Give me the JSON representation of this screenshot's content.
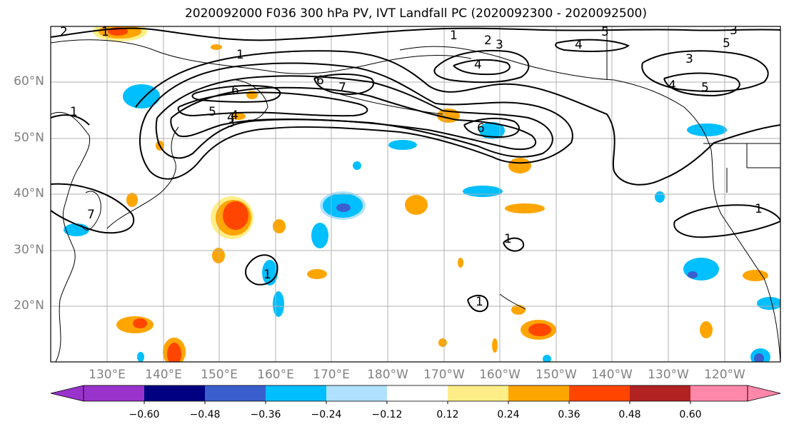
{
  "title": "2020092000 F036 300 hPa PV, IVT Landfall PC (2020092300 - 2020092500)",
  "map": {
    "lat_labels": [
      "60°N",
      "50°N",
      "40°N",
      "30°N",
      "20°N"
    ],
    "lat_values": [
      60,
      50,
      40,
      30,
      20
    ],
    "lon_labels": [
      "130°E",
      "140°E",
      "150°E",
      "160°E",
      "170°E",
      "180°W",
      "170°W",
      "160°W",
      "150°W",
      "140°W",
      "130°W",
      "120°W"
    ],
    "lon_values": [
      130,
      140,
      150,
      160,
      170,
      180,
      190,
      200,
      210,
      220,
      230,
      240
    ],
    "extent": {
      "lon_min": 120,
      "lon_max": 250,
      "lat_min": 10,
      "lat_max": 70
    },
    "pv_contour_labels": [
      "1",
      "2",
      "3",
      "4",
      "5",
      "6",
      "7",
      "1",
      "2",
      "3",
      "4",
      "5",
      "1",
      "4",
      "3",
      "6",
      "7",
      "1",
      "1",
      "1",
      "1",
      "5",
      "4",
      "3",
      "6",
      "4",
      "5",
      "1"
    ],
    "colors": {
      "land_outline": "#000000",
      "grid": "#b0b0b0",
      "contour": "#000000"
    }
  },
  "colorbar": {
    "ticks": [
      "−0.60",
      "−0.48",
      "−0.36",
      "−0.24",
      "−0.12",
      "0.12",
      "0.24",
      "0.36",
      "0.48",
      "0.60"
    ],
    "colors": [
      "#9933cc",
      "#000080",
      "#3a5fcd",
      "#00bfff",
      "#b0e2ff",
      "#ffffff",
      "#ffee88",
      "#ffa500",
      "#ff4500",
      "#b22222",
      "#ff88aa"
    ]
  }
}
